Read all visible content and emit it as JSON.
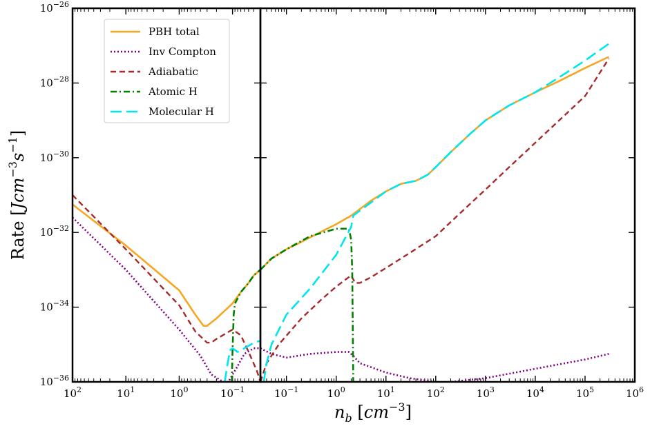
{
  "chart_data": {
    "type": "line",
    "xlabel": "n_b [cm^-3]",
    "ylabel": "Rate [J cm^-3 s^-1]",
    "xlabel_parts": {
      "var": "n",
      "sub": "b",
      "open": " [",
      "unit": "cm",
      "sup": "−3",
      "close": "]"
    },
    "ylabel_parts": {
      "text": "Rate [",
      "unit1": "Jcm",
      "sup1": "−3",
      "unit2": "s",
      "sup2": "−1",
      "close": "]"
    },
    "ylim": [
      1e-36,
      1e-26
    ],
    "panels": [
      {
        "name": "left-panel",
        "xscale": "log",
        "xlim": [
          100,
          0.03
        ],
        "x_ticks": [
          100,
          10,
          1,
          0.1
        ],
        "x_tick_labels": [
          {
            "base": "10",
            "exp": "2"
          },
          {
            "base": "10",
            "exp": "1"
          },
          {
            "base": "10",
            "exp": "0"
          },
          {
            "base": "10",
            "exp": "−1"
          }
        ]
      },
      {
        "name": "right-panel",
        "xscale": "log",
        "xlim": [
          0.03,
          1000000
        ],
        "x_ticks": [
          0.1,
          1,
          10,
          100,
          1000,
          10000,
          100000,
          1000000
        ],
        "x_tick_labels": [
          {
            "base": "10",
            "exp": "−1"
          },
          {
            "base": "10",
            "exp": "0"
          },
          {
            "base": "10",
            "exp": "1"
          },
          {
            "base": "10",
            "exp": "2"
          },
          {
            "base": "10",
            "exp": "3"
          },
          {
            "base": "10",
            "exp": "4"
          },
          {
            "base": "10",
            "exp": "5"
          },
          {
            "base": "10",
            "exp": "6"
          }
        ]
      }
    ],
    "y_ticks": [
      -36,
      -34,
      -32,
      -30,
      -28,
      -26
    ],
    "y_tick_labels": [
      {
        "base": "10",
        "exp": "−36"
      },
      {
        "base": "10",
        "exp": "−34"
      },
      {
        "base": "10",
        "exp": "−32"
      },
      {
        "base": "10",
        "exp": "−30"
      },
      {
        "base": "10",
        "exp": "−28"
      },
      {
        "base": "10",
        "exp": "−26"
      }
    ],
    "legend": {
      "placement": "top-left",
      "entries": [
        {
          "label": "PBH total",
          "series": "PBH total"
        },
        {
          "label": "Inv Compton",
          "series": "Inv Compton"
        },
        {
          "label": "Adiabatic",
          "series": "Adiabatic"
        },
        {
          "label": "Atomic H",
          "series": "Atomic H"
        },
        {
          "label": "Molecular H",
          "series": "Molecular H"
        }
      ]
    },
    "series": [
      {
        "name": "PBH total",
        "color": "#f5a623",
        "dash": "",
        "width": 2.6,
        "left": [
          [
            100,
            -31.25
          ],
          [
            10,
            -32.35
          ],
          [
            1,
            -33.55
          ],
          [
            0.5,
            -34.2
          ],
          [
            0.35,
            -34.5
          ],
          [
            0.3,
            -34.5
          ],
          [
            0.2,
            -34.3
          ],
          [
            0.1,
            -33.9
          ],
          [
            0.07,
            -33.6
          ],
          [
            0.05,
            -33.35
          ],
          [
            0.04,
            -33.15
          ],
          [
            0.03,
            -33.0
          ]
        ],
        "right": [
          [
            0.03,
            -33.0
          ],
          [
            0.05,
            -32.7
          ],
          [
            0.1,
            -32.45
          ],
          [
            0.2,
            -32.25
          ],
          [
            0.5,
            -31.98
          ],
          [
            1,
            -31.78
          ],
          [
            2,
            -31.55
          ],
          [
            5,
            -31.15
          ],
          [
            10,
            -30.9
          ],
          [
            20,
            -30.7
          ],
          [
            40,
            -30.62
          ],
          [
            70,
            -30.45
          ],
          [
            100,
            -30.25
          ],
          [
            200,
            -29.85
          ],
          [
            500,
            -29.35
          ],
          [
            1000,
            -29.0
          ],
          [
            3000,
            -28.6
          ],
          [
            10000,
            -28.25
          ],
          [
            30000,
            -27.95
          ],
          [
            100000,
            -27.6
          ],
          [
            300000,
            -27.3
          ]
        ]
      },
      {
        "name": "Inv Compton",
        "color": "#800080",
        "dash": "2,3",
        "width": 2.6,
        "left": [
          [
            100,
            -31.6
          ],
          [
            10,
            -33.0
          ],
          [
            1,
            -34.6
          ],
          [
            0.4,
            -35.3
          ],
          [
            0.25,
            -35.8
          ],
          [
            0.15,
            -36.0
          ],
          [
            0.12,
            -36.0
          ],
          [
            0.09,
            -35.7
          ],
          [
            0.06,
            -35.25
          ],
          [
            0.04,
            -35.1
          ],
          [
            0.03,
            -35.1
          ]
        ],
        "right": [
          [
            0.03,
            -35.1
          ],
          [
            0.05,
            -35.25
          ],
          [
            0.1,
            -35.35
          ],
          [
            0.3,
            -35.25
          ],
          [
            1,
            -35.2
          ],
          [
            1.8,
            -35.2
          ],
          [
            2.2,
            -35.3
          ],
          [
            3,
            -35.5
          ],
          [
            10,
            -35.75
          ],
          [
            30,
            -35.9
          ],
          [
            100,
            -36.0
          ],
          [
            200,
            -36.0
          ],
          [
            1000,
            -35.9
          ],
          [
            10000,
            -35.65
          ],
          [
            100000,
            -35.4
          ],
          [
            300000,
            -35.25
          ]
        ]
      },
      {
        "name": "Adiabatic",
        "color": "#a52a2a",
        "dash": "8,5",
        "width": 2.4,
        "left": [
          [
            100,
            -31.0
          ],
          [
            10,
            -32.45
          ],
          [
            1,
            -33.95
          ],
          [
            0.5,
            -34.65
          ],
          [
            0.3,
            -34.95
          ],
          [
            0.25,
            -34.95
          ],
          [
            0.2,
            -34.85
          ],
          [
            0.1,
            -34.6
          ],
          [
            0.07,
            -34.75
          ],
          [
            0.05,
            -35.2
          ],
          [
            0.035,
            -35.7
          ],
          [
            0.03,
            -36.0
          ]
        ],
        "right": [
          [
            0.03,
            -36.0
          ],
          [
            0.04,
            -35.5
          ],
          [
            0.07,
            -35.0
          ],
          [
            0.2,
            -34.3
          ],
          [
            0.5,
            -33.8
          ],
          [
            1,
            -33.45
          ],
          [
            2,
            -33.15
          ],
          [
            2.4,
            -33.35
          ],
          [
            3,
            -33.35
          ],
          [
            5,
            -33.2
          ],
          [
            10,
            -32.95
          ],
          [
            30,
            -32.55
          ],
          [
            100,
            -32.1
          ],
          [
            300,
            -31.5
          ],
          [
            1000,
            -30.85
          ],
          [
            3000,
            -30.25
          ],
          [
            10000,
            -29.6
          ],
          [
            100000,
            -28.35
          ],
          [
            300000,
            -27.35
          ]
        ]
      },
      {
        "name": "Atomic H",
        "color": "#008000",
        "dash": "9,4,2,4",
        "width": 2.6,
        "left": [
          [
            0.103,
            -36.0
          ],
          [
            0.1,
            -35.2
          ],
          [
            0.095,
            -34.2
          ],
          [
            0.09,
            -33.9
          ],
          [
            0.07,
            -33.6
          ],
          [
            0.05,
            -33.35
          ],
          [
            0.04,
            -33.15
          ],
          [
            0.03,
            -33.0
          ]
        ],
        "right": [
          [
            0.03,
            -33.0
          ],
          [
            0.05,
            -32.7
          ],
          [
            0.1,
            -32.45
          ],
          [
            0.3,
            -32.1
          ],
          [
            1,
            -31.9
          ],
          [
            1.8,
            -31.9
          ],
          [
            2.0,
            -32.2
          ],
          [
            2.1,
            -33.0
          ],
          [
            2.15,
            -34.5
          ],
          [
            2.2,
            -36.0
          ]
        ]
      },
      {
        "name": "Molecular H",
        "color": "#00e5ee",
        "dash": "16,7",
        "width": 2.6,
        "left": [
          [
            0.14,
            -36.0
          ],
          [
            0.12,
            -35.4
          ],
          [
            0.11,
            -35.15
          ],
          [
            0.1,
            -35.1
          ],
          [
            0.08,
            -35.2
          ],
          [
            0.06,
            -35.1
          ],
          [
            0.04,
            -34.95
          ],
          [
            0.03,
            -34.9
          ]
        ],
        "right": [
          [
            0.035,
            -36.0
          ],
          [
            0.04,
            -35.5
          ],
          [
            0.05,
            -35.0
          ],
          [
            0.1,
            -34.2
          ],
          [
            0.3,
            -33.5
          ],
          [
            1,
            -32.6
          ],
          [
            2,
            -31.85
          ],
          [
            2.2,
            -31.55
          ],
          [
            5,
            -31.2
          ],
          [
            10,
            -30.9
          ],
          [
            20,
            -30.7
          ],
          [
            40,
            -30.62
          ],
          [
            70,
            -30.45
          ],
          [
            100,
            -30.25
          ],
          [
            200,
            -29.85
          ],
          [
            500,
            -29.35
          ],
          [
            1000,
            -29.0
          ],
          [
            3000,
            -28.6
          ],
          [
            10000,
            -28.25
          ],
          [
            30000,
            -27.85
          ],
          [
            100000,
            -27.4
          ],
          [
            300000,
            -26.95
          ]
        ]
      }
    ]
  }
}
